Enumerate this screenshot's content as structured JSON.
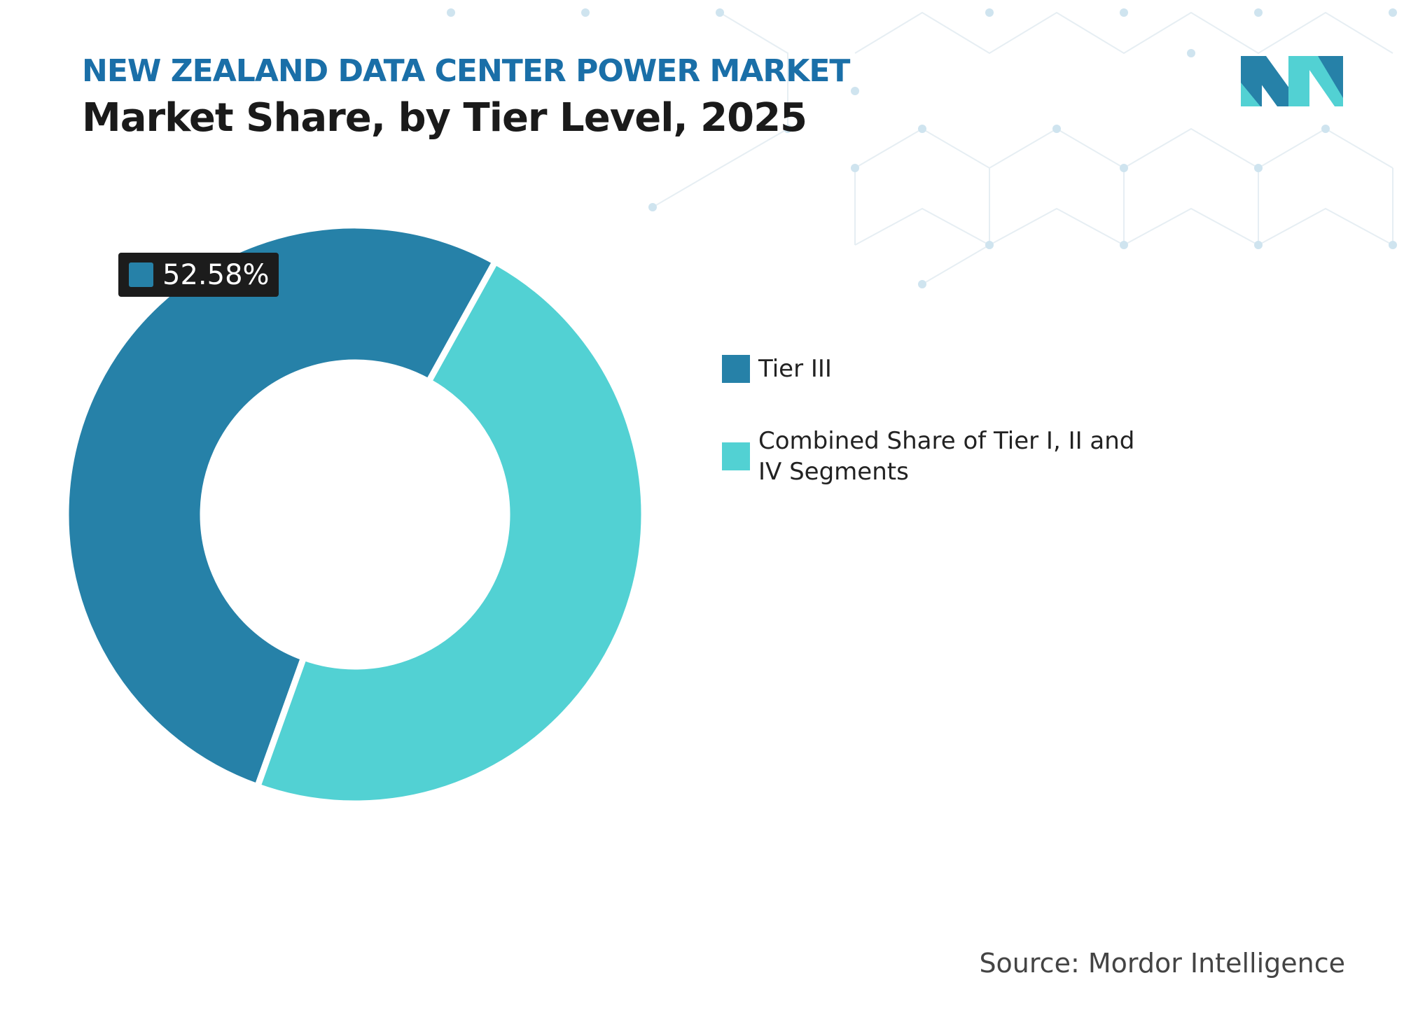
{
  "chart_data": {
    "type": "donut",
    "super_title": "NEW ZEALAND DATA CENTER POWER MARKET",
    "title": "Market Share, by Tier Level, 2025",
    "categories": [
      "Tier III",
      "Combined Share of Tier I, II and IV Segments"
    ],
    "values": [
      52.58,
      47.42
    ],
    "value_labels": [
      "52.58%",
      null
    ],
    "colors": [
      "#2681a8",
      "#52d1d3"
    ],
    "source": "Source: Mordor Intelligence"
  }
}
